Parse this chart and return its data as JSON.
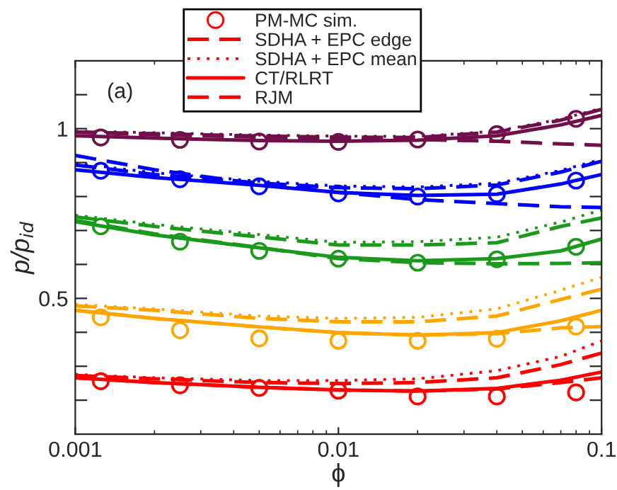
{
  "chart_data": {
    "type": "line",
    "xlabel": "ϕ",
    "ylabel": "p/p$_{id}$",
    "annotations": [
      "(a)"
    ],
    "log": "x",
    "xlim": [
      0.001,
      0.1
    ],
    "xticks": [
      0.001,
      0.01,
      0.1
    ],
    "ylim": [
      0.1,
      1.2
    ],
    "yticks": [
      {
        "value": 0.2,
        "label": null
      },
      {
        "value": 0.3,
        "label": null
      },
      {
        "value": 0.4,
        "label": null
      },
      0.5,
      {
        "value": 0.6,
        "label": null
      },
      {
        "value": 0.7,
        "label": null
      },
      {
        "value": 0.8,
        "label": null
      },
      {
        "value": 0.9,
        "label": null
      },
      1,
      {
        "value": 1.1,
        "label": null
      }
    ],
    "grid": false,
    "legend": "top",
    "series": [
      {
        "type": "scatter",
        "name": "PM-MC sim.",
        "color": "#ff0000",
        "marker": "circle",
        "x": [
          0.00125,
          0.0025,
          0.005,
          0.01,
          0.02,
          0.04,
          0.08
        ],
        "values": [
          0.256,
          0.244,
          0.236,
          0.228,
          0.211,
          0.211,
          0.223
        ]
      },
      {
        "name": "SDHA + EPC edge",
        "color": "#ff0000",
        "line_style": "dashed",
        "x": [
          0.001,
          0.002,
          0.005,
          0.01,
          0.02,
          0.04,
          0.07,
          0.1
        ],
        "values": [
          0.273,
          0.263,
          0.252,
          0.249,
          0.252,
          0.266,
          0.305,
          0.339
        ]
      },
      {
        "name": "SDHA + EPC mean",
        "color": "#ff0000",
        "line_style": "dotted",
        "x": [
          0.001,
          0.002,
          0.005,
          0.01,
          0.02,
          0.04,
          0.07,
          0.1
        ],
        "values": [
          0.276,
          0.266,
          0.258,
          0.258,
          0.263,
          0.287,
          0.329,
          0.375
        ]
      },
      {
        "name": "CT/RLRT",
        "color": "#ff0000",
        "line_style": "solid",
        "x": [
          0.001,
          0.002,
          0.005,
          0.01,
          0.02,
          0.04,
          0.07,
          0.1
        ],
        "values": [
          0.266,
          0.252,
          0.238,
          0.23,
          0.227,
          0.235,
          0.259,
          0.283
        ]
      },
      {
        "name": "RJM",
        "color": "#ff0000",
        "line_style": "dashed",
        "x": [
          0.001,
          0.002,
          0.005,
          0.01,
          0.02,
          0.04,
          0.07,
          0.1
        ],
        "values": [
          0.266,
          0.252,
          0.238,
          0.23,
          0.227,
          0.233,
          0.252,
          0.266
        ]
      },
      {
        "type": "scatter",
        "color": "#ffa500",
        "marker": "circle",
        "x": [
          0.00125,
          0.0025,
          0.005,
          0.01,
          0.02,
          0.04,
          0.08
        ],
        "values": [
          0.444,
          0.406,
          0.382,
          0.375,
          0.375,
          0.381,
          0.417
        ]
      },
      {
        "color": "#ffa500",
        "line_style": "dashed",
        "x": [
          0.001,
          0.002,
          0.005,
          0.01,
          0.02,
          0.04,
          0.07,
          0.1
        ],
        "values": [
          0.478,
          0.465,
          0.441,
          0.431,
          0.431,
          0.448,
          0.497,
          0.527
        ]
      },
      {
        "color": "#ffa500",
        "line_style": "dotted",
        "x": [
          0.001,
          0.002,
          0.005,
          0.01,
          0.02,
          0.04,
          0.07,
          0.1
        ],
        "values": [
          0.482,
          0.469,
          0.448,
          0.441,
          0.444,
          0.469,
          0.524,
          0.562
        ]
      },
      {
        "color": "#ffa500",
        "line_style": "solid",
        "x": [
          0.001,
          0.002,
          0.005,
          0.01,
          0.02,
          0.04,
          0.07,
          0.1
        ],
        "values": [
          0.465,
          0.441,
          0.416,
          0.399,
          0.392,
          0.399,
          0.434,
          0.465
        ]
      },
      {
        "color": "#ffa500",
        "line_style": "dashed",
        "x": [
          0.001,
          0.002,
          0.005,
          0.01,
          0.02,
          0.04,
          0.07,
          0.1
        ],
        "values": [
          0.465,
          0.441,
          0.416,
          0.399,
          0.392,
          0.396,
          0.413,
          0.417
        ]
      },
      {
        "type": "scatter",
        "color": "#1a9a1a",
        "marker": "circle",
        "x": [
          0.00125,
          0.0025,
          0.005,
          0.01,
          0.02,
          0.04,
          0.08
        ],
        "values": [
          0.712,
          0.667,
          0.64,
          0.617,
          0.605,
          0.615,
          0.652
        ]
      },
      {
        "color": "#1a9a1a",
        "line_style": "dashed",
        "x": [
          0.001,
          0.002,
          0.005,
          0.01,
          0.02,
          0.04,
          0.07,
          0.1
        ],
        "values": [
          0.74,
          0.712,
          0.681,
          0.657,
          0.657,
          0.664,
          0.712,
          0.737
        ]
      },
      {
        "color": "#1a9a1a",
        "line_style": "dotted",
        "x": [
          0.001,
          0.002,
          0.005,
          0.01,
          0.02,
          0.04,
          0.07,
          0.1
        ],
        "values": [
          0.745,
          0.718,
          0.688,
          0.665,
          0.667,
          0.68,
          0.725,
          0.76
        ]
      },
      {
        "color": "#1a9a1a",
        "line_style": "solid",
        "x": [
          0.001,
          0.002,
          0.005,
          0.01,
          0.02,
          0.04,
          0.07,
          0.1
        ],
        "values": [
          0.726,
          0.687,
          0.649,
          0.621,
          0.611,
          0.617,
          0.64,
          0.675
        ]
      },
      {
        "color": "#1a9a1a",
        "line_style": "dashed",
        "x": [
          0.001,
          0.002,
          0.005,
          0.01,
          0.02,
          0.04,
          0.07,
          0.1
        ],
        "values": [
          0.73,
          0.69,
          0.65,
          0.617,
          0.605,
          0.602,
          0.603,
          0.605
        ]
      },
      {
        "type": "scatter",
        "color": "#0000ff",
        "marker": "circle",
        "x": [
          0.00125,
          0.0025,
          0.005,
          0.01,
          0.02,
          0.04,
          0.08
        ],
        "values": [
          0.876,
          0.851,
          0.83,
          0.809,
          0.8,
          0.807,
          0.847
        ]
      },
      {
        "color": "#0000ff",
        "line_style": "dashed",
        "x": [
          0.001,
          0.002,
          0.005,
          0.01,
          0.02,
          0.04,
          0.07,
          0.1
        ],
        "values": [
          0.893,
          0.865,
          0.84,
          0.826,
          0.823,
          0.834,
          0.872,
          0.904
        ]
      },
      {
        "color": "#0000ff",
        "line_style": "dotted",
        "x": [
          0.001,
          0.002,
          0.005,
          0.01,
          0.02,
          0.04,
          0.07,
          0.1
        ],
        "values": [
          0.898,
          0.87,
          0.845,
          0.831,
          0.828,
          0.839,
          0.877,
          0.909
        ]
      },
      {
        "color": "#0000ff",
        "line_style": "solid",
        "x": [
          0.001,
          0.002,
          0.005,
          0.01,
          0.02,
          0.04,
          0.07,
          0.1
        ],
        "values": [
          0.879,
          0.856,
          0.833,
          0.812,
          0.803,
          0.807,
          0.837,
          0.865
        ]
      },
      {
        "color": "#0000ff",
        "line_style": "dashed",
        "x": [
          0.001,
          0.002,
          0.005,
          0.01,
          0.02,
          0.04,
          0.07,
          0.1
        ],
        "values": [
          0.921,
          0.879,
          0.837,
          0.812,
          0.791,
          0.779,
          0.77,
          0.768
        ]
      },
      {
        "type": "scatter",
        "color": "#700f4a",
        "marker": "circle",
        "x": [
          0.00125,
          0.0025,
          0.005,
          0.01,
          0.02,
          0.04,
          0.08
        ],
        "values": [
          0.974,
          0.967,
          0.962,
          0.961,
          0.968,
          0.984,
          1.029
        ]
      },
      {
        "color": "#700f4a",
        "line_style": "dashed",
        "x": [
          0.001,
          0.002,
          0.005,
          0.01,
          0.02,
          0.04,
          0.07,
          0.1
        ],
        "values": [
          0.99,
          0.985,
          0.978,
          0.975,
          0.974,
          0.99,
          1.025,
          1.057
        ]
      },
      {
        "color": "#700f4a",
        "line_style": "dotted",
        "x": [
          0.001,
          0.002,
          0.005,
          0.01,
          0.02,
          0.04,
          0.07,
          0.1
        ],
        "values": [
          0.993,
          0.988,
          0.981,
          0.978,
          0.977,
          0.993,
          1.028,
          1.06
        ]
      },
      {
        "color": "#700f4a",
        "line_style": "solid",
        "x": [
          0.001,
          0.002,
          0.005,
          0.01,
          0.02,
          0.04,
          0.07,
          0.1
        ],
        "values": [
          0.979,
          0.972,
          0.965,
          0.963,
          0.966,
          0.979,
          1.011,
          1.039
        ]
      },
      {
        "color": "#700f4a",
        "line_style": "dashed",
        "x": [
          0.001,
          0.002,
          0.005,
          0.01,
          0.02,
          0.04,
          0.07,
          0.1
        ],
        "values": [
          0.99,
          0.982,
          0.975,
          0.97,
          0.968,
          0.963,
          0.955,
          0.951
        ]
      }
    ]
  }
}
